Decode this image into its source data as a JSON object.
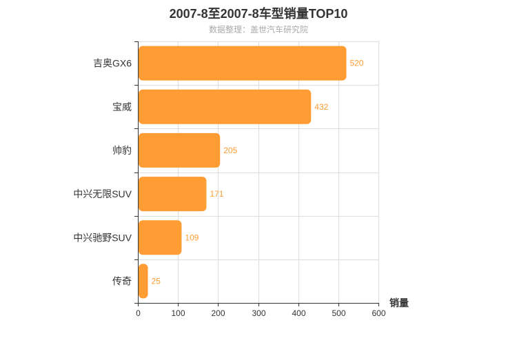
{
  "chart_data": {
    "type": "bar",
    "orientation": "horizontal",
    "title": "2007-8至2007-8车型销量TOP10",
    "subtitle": "数据整理：盖世汽车研究院",
    "categories": [
      "吉奥GX6",
      "宝威",
      "帅豹",
      "中兴无限SUV",
      "中兴驰野SUV",
      "传奇"
    ],
    "values": [
      520,
      432,
      205,
      171,
      109,
      25
    ],
    "xlabel": "销量",
    "ylabel": "",
    "xlim": [
      0,
      600
    ],
    "xticks": [
      "0",
      "100",
      "200",
      "300",
      "400",
      "500",
      "600"
    ],
    "grid": true,
    "data_labels": true,
    "colors": {
      "bar": "#ff9c33",
      "label": "#ff9c33",
      "axis": "#333333",
      "grid": "#dddddd",
      "tick_text": "#333333"
    }
  }
}
